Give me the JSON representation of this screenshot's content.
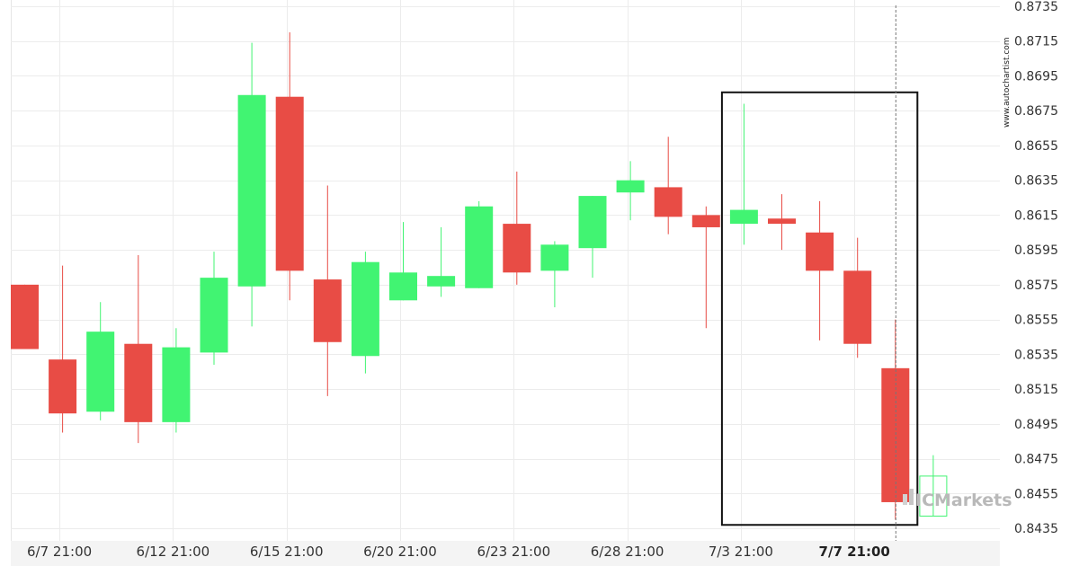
{
  "chart_data": {
    "type": "candlestick",
    "title": "",
    "xlabel": "",
    "ylabel": "",
    "ylim": [
      0.8425,
      0.8735
    ],
    "y_ticks": [
      "0.8735",
      "0.8715",
      "0.8695",
      "0.8675",
      "0.8655",
      "0.8635",
      "0.8615",
      "0.8595",
      "0.8575",
      "0.8555",
      "0.8535",
      "0.8515",
      "0.8495",
      "0.8475",
      "0.8455",
      "0.8435"
    ],
    "x_ticks": [
      {
        "label": "6/7 21:00",
        "index": 1,
        "bold": false
      },
      {
        "label": "6/12 21:00",
        "index": 4,
        "bold": false
      },
      {
        "label": "6/15 21:00",
        "index": 7,
        "bold": false
      },
      {
        "label": "6/20 21:00",
        "index": 10,
        "bold": false
      },
      {
        "label": "6/23 21:00",
        "index": 13,
        "bold": false
      },
      {
        "label": "6/28 21:00",
        "index": 16,
        "bold": false
      },
      {
        "label": "7/3 21:00",
        "index": 19,
        "bold": false
      },
      {
        "label": "7/7 21:00",
        "index": 22,
        "bold": true
      }
    ],
    "candles": [
      {
        "open": 0.8575,
        "high": 0.8575,
        "low": 0.8538,
        "close": 0.8538
      },
      {
        "open": 0.8532,
        "high": 0.8586,
        "low": 0.849,
        "close": 0.8501
      },
      {
        "open": 0.8502,
        "high": 0.8565,
        "low": 0.8497,
        "close": 0.8548
      },
      {
        "open": 0.8541,
        "high": 0.8592,
        "low": 0.8484,
        "close": 0.8496
      },
      {
        "open": 0.8496,
        "high": 0.855,
        "low": 0.849,
        "close": 0.8539
      },
      {
        "open": 0.8536,
        "high": 0.8594,
        "low": 0.8529,
        "close": 0.8579
      },
      {
        "open": 0.8574,
        "high": 0.8714,
        "low": 0.8551,
        "close": 0.8684
      },
      {
        "open": 0.8683,
        "high": 0.872,
        "low": 0.8566,
        "close": 0.8583
      },
      {
        "open": 0.8578,
        "high": 0.8632,
        "low": 0.8511,
        "close": 0.8542
      },
      {
        "open": 0.8534,
        "high": 0.8594,
        "low": 0.8524,
        "close": 0.8588
      },
      {
        "open": 0.8566,
        "high": 0.8611,
        "low": 0.8566,
        "close": 0.8582
      },
      {
        "open": 0.8574,
        "high": 0.8608,
        "low": 0.8568,
        "close": 0.858
      },
      {
        "open": 0.8573,
        "high": 0.8623,
        "low": 0.8573,
        "close": 0.862
      },
      {
        "open": 0.861,
        "high": 0.864,
        "low": 0.8575,
        "close": 0.8582
      },
      {
        "open": 0.8583,
        "high": 0.86,
        "low": 0.8562,
        "close": 0.8598
      },
      {
        "open": 0.8596,
        "high": 0.8626,
        "low": 0.8579,
        "close": 0.8626
      },
      {
        "open": 0.8628,
        "high": 0.8646,
        "low": 0.8612,
        "close": 0.8635
      },
      {
        "open": 0.8631,
        "high": 0.866,
        "low": 0.8604,
        "close": 0.8614
      },
      {
        "open": 0.8615,
        "high": 0.862,
        "low": 0.855,
        "close": 0.8608
      },
      {
        "open": 0.861,
        "high": 0.8679,
        "low": 0.8598,
        "close": 0.8618
      },
      {
        "open": 0.8613,
        "high": 0.8627,
        "low": 0.8595,
        "close": 0.861
      },
      {
        "open": 0.8605,
        "high": 0.8623,
        "low": 0.8543,
        "close": 0.8583
      },
      {
        "open": 0.8583,
        "high": 0.8602,
        "low": 0.8533,
        "close": 0.8541
      },
      {
        "open": 0.8527,
        "high": 0.8555,
        "low": 0.844,
        "close": 0.845
      },
      {
        "open": 0.8442,
        "high": 0.8477,
        "low": 0.8442,
        "close": 0.8465
      }
    ],
    "colors": {
      "up": "#41f472",
      "down": "#e84c45",
      "grid": "#ececec",
      "axis_bg": "#f4f4f4",
      "box": "#111111",
      "crosshair": "#777777"
    },
    "highlight": {
      "from_index": 19,
      "to_index": 23,
      "top": 0.8684,
      "bottom": 0.8439
    },
    "crosshair_index": 23,
    "grid": true,
    "watermark": "www.autochartist.com",
    "brand_logo_text": "ICMarkets"
  }
}
